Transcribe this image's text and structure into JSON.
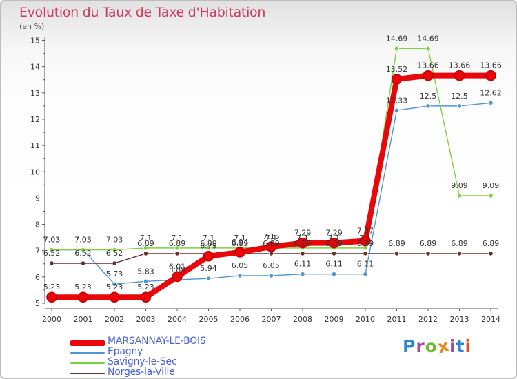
{
  "title": "Evolution du Taux de Taxe d'Habitation",
  "subtitle": "(en %)",
  "logo": {
    "text": "Proxiti",
    "colors": [
      "#2a88c8",
      "#9c4f9e",
      "#6fbb36",
      "#e98b1a",
      "#9c4f9e",
      "#2a88c8",
      "#e24c24"
    ]
  },
  "chart_data": {
    "type": "line",
    "title": "Evolution du Taux de Taxe d'Habitation",
    "ylabel": "(en %)",
    "xlabel": "",
    "categories": [
      "2000",
      "2001",
      "2002",
      "2003",
      "2004",
      "2005",
      "2006",
      "2007",
      "2008",
      "2009",
      "2010",
      "2011",
      "2012",
      "2013",
      "2014"
    ],
    "ylim": [
      5,
      15
    ],
    "y_ticks": [
      "5",
      "6",
      "7",
      "8",
      "9",
      "10",
      "11",
      "12",
      "13",
      "14",
      "15"
    ],
    "grid": false,
    "legend_position": "bottom-left",
    "series": [
      {
        "name": "MARSANNAY-LE-BOIS",
        "color": "#e8070b",
        "emphasis": "thick",
        "values": [
          5.23,
          5.23,
          5.23,
          5.23,
          6.01,
          6.79,
          6.94,
          7.15,
          7.29,
          7.29,
          7.37,
          13.52,
          13.66,
          13.66,
          13.66
        ],
        "labels": [
          "5.23",
          "5.23",
          "5.23",
          "5.23",
          "6.01",
          "6.79",
          "6.94",
          "7.15",
          "7.29",
          "7.29",
          "7.37",
          "13.52",
          "13.66",
          "13.66",
          "13.66"
        ]
      },
      {
        "name": "Epagny",
        "color": "#4e96d6",
        "values": [
          7.03,
          7.03,
          5.73,
          5.83,
          5.89,
          5.94,
          6.05,
          6.05,
          6.11,
          6.11,
          6.11,
          12.33,
          12.5,
          12.5,
          12.62
        ],
        "labels": [
          "7.03",
          "7.03",
          "5.73",
          "5.83",
          "5.89",
          "5.94",
          "6.05",
          "6.05",
          "6.11",
          "6.11",
          "6.11",
          "12.33",
          "12.5",
          "12.5",
          "12.62"
        ]
      },
      {
        "name": "Savigny-le-Sec",
        "color": "#7cd23d",
        "values": [
          7.03,
          7.03,
          7.03,
          7.1,
          7.1,
          7.1,
          7.1,
          7.1,
          7.1,
          7.1,
          7.1,
          14.69,
          14.69,
          9.09,
          9.09
        ],
        "labels": [
          "7.03",
          "7.03",
          "7.03",
          "7.1",
          "7.1",
          "7.1",
          "7.1",
          "7.1",
          "7.1",
          "7.1",
          "7.1",
          "14.69",
          "14.69",
          "9.09",
          "9.09"
        ]
      },
      {
        "name": "Norges-la-Ville",
        "color": "#6b2d2d",
        "values": [
          6.52,
          6.52,
          6.52,
          6.89,
          6.89,
          6.89,
          6.89,
          6.89,
          6.89,
          6.89,
          6.89,
          6.89,
          6.89,
          6.89,
          6.89
        ],
        "labels": [
          "6.52",
          "6.52",
          "6.52",
          "6.89",
          "6.89",
          "6.89",
          "6.89",
          "6.89",
          "6.89",
          "6.89",
          "6.89",
          "6.89",
          "6.89",
          "6.89",
          "6.89"
        ]
      }
    ]
  }
}
